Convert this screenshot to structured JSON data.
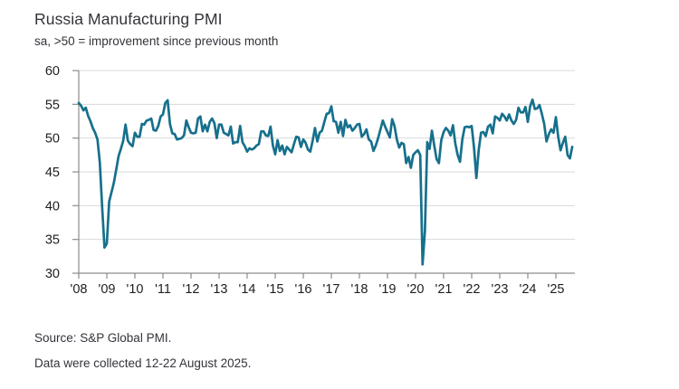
{
  "header": {
    "title": "Russia Manufacturing PMI",
    "subtitle": "sa, >50 = improvement since previous month"
  },
  "footer": {
    "source_line": "Source: S&P Global PMI.",
    "note_line": "Data were collected 12-22 August 2025."
  },
  "chart_data": {
    "type": "line",
    "title": "Russia Manufacturing PMI",
    "series_name": "Russia Manufacturing PMI, sa",
    "frequency": "monthly",
    "start": "2008-01",
    "end": "2025-08",
    "ylim": [
      30,
      60
    ],
    "y_ticks": [
      30,
      35,
      40,
      45,
      50,
      55,
      60
    ],
    "x_tick_labels": [
      "'08",
      "'09",
      "'10",
      "'11",
      "'12",
      "'13",
      "'14",
      "'15",
      "'16",
      "'17",
      "'18",
      "'19",
      "'20",
      "'21",
      "'22",
      "'23",
      "'24",
      "'25"
    ],
    "grid": "horizontal",
    "legend": "none",
    "line_color": "#16708c",
    "grid_color": "#d9d9d9",
    "axis_color": "#8c8c8c",
    "tick_label_color": "#1e1e1e",
    "values": [
      55.2,
      54.8,
      54.1,
      54.5,
      53.3,
      52.5,
      51.5,
      50.8,
      49.8,
      46.4,
      39.8,
      33.8,
      34.4,
      40.6,
      42.0,
      43.4,
      45.3,
      47.3,
      48.4,
      49.6,
      52.0,
      49.6,
      49.1,
      48.8,
      50.8,
      50.2,
      50.2,
      52.1,
      52.0,
      52.6,
      52.7,
      52.9,
      51.2,
      51.1,
      51.8,
      53.2,
      53.5,
      55.2,
      55.6,
      52.1,
      50.7,
      50.6,
      49.8,
      49.9,
      50.0,
      50.4,
      52.6,
      51.6,
      50.8,
      50.7,
      50.8,
      52.9,
      53.2,
      51.0,
      52.0,
      51.0,
      52.4,
      52.9,
      52.2,
      50.0,
      52.0,
      52.0,
      50.8,
      50.6,
      50.4,
      51.7,
      49.2,
      49.4,
      49.4,
      51.8,
      49.4,
      48.8,
      48.0,
      48.5,
      48.3,
      48.5,
      48.9,
      49.1,
      51.0,
      51.0,
      50.4,
      50.3,
      51.7,
      48.9,
      47.6,
      49.7,
      48.1,
      48.9,
      47.6,
      48.7,
      48.3,
      47.9,
      49.1,
      50.2,
      50.1,
      48.7,
      49.8,
      49.3,
      48.3,
      48.0,
      49.6,
      51.5,
      49.5,
      50.8,
      51.1,
      52.4,
      53.6,
      53.7,
      54.7,
      52.5,
      52.4,
      50.8,
      52.4,
      50.3,
      52.7,
      51.6,
      51.9,
      51.1,
      51.5,
      52.0,
      52.1,
      50.2,
      50.6,
      51.3,
      49.8,
      49.5,
      48.1,
      48.9,
      50.0,
      51.3,
      52.6,
      51.7,
      50.9,
      50.1,
      52.8,
      51.8,
      49.8,
      48.6,
      49.3,
      49.1,
      46.3,
      47.2,
      45.6,
      47.5,
      47.9,
      48.2,
      47.5,
      31.3,
      36.2,
      49.4,
      48.4,
      51.1,
      48.9,
      46.9,
      46.3,
      49.7,
      50.9,
      51.5,
      51.1,
      50.4,
      51.9,
      49.2,
      47.5,
      46.5,
      49.8,
      51.6,
      51.7,
      51.6,
      51.8,
      48.6,
      44.1,
      48.2,
      50.8,
      50.9,
      50.3,
      51.7,
      52.0,
      50.7,
      53.2,
      53.0,
      52.6,
      53.6,
      53.2,
      52.6,
      53.5,
      52.6,
      52.1,
      52.7,
      54.5,
      53.8,
      53.8,
      54.6,
      52.4,
      54.7,
      55.7,
      54.3,
      54.4,
      54.9,
      53.6,
      52.1,
      49.5,
      50.6,
      51.3,
      50.8,
      53.1,
      50.2,
      48.2,
      49.3,
      50.2,
      47.5,
      47.0,
      48.7
    ]
  }
}
